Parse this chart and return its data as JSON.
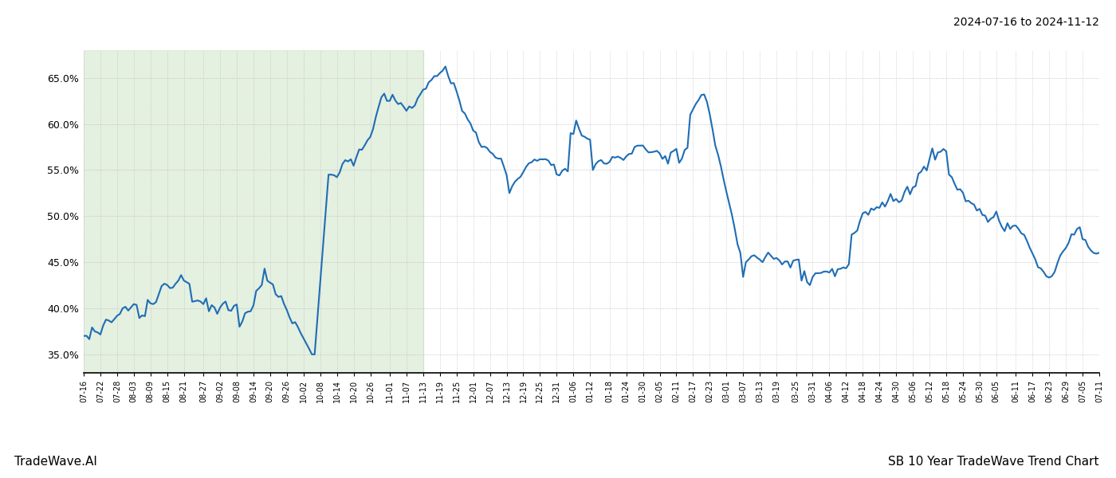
{
  "title_date_range": "2024-07-16 to 2024-11-12",
  "bottom_left_label": "TradeWave.AI",
  "bottom_right_label": "SB 10 Year TradeWave Trend Chart",
  "line_color": "#1f6db5",
  "line_width": 1.5,
  "bg_color": "#ffffff",
  "grid_color": "#b8b8b8",
  "highlight_fill": "#d6e8d0",
  "highlight_alpha": 0.65,
  "ylim": [
    33.0,
    68.0
  ],
  "yticks": [
    35.0,
    40.0,
    45.0,
    50.0,
    55.0,
    60.0,
    65.0
  ],
  "x_labels": [
    "07-16",
    "07-22",
    "07-28",
    "08-03",
    "08-09",
    "08-15",
    "08-21",
    "08-27",
    "09-02",
    "09-08",
    "09-14",
    "09-20",
    "09-26",
    "10-02",
    "10-08",
    "10-14",
    "10-20",
    "10-26",
    "11-01",
    "11-07",
    "11-13",
    "11-19",
    "11-25",
    "12-01",
    "12-07",
    "12-13",
    "12-19",
    "12-25",
    "12-31",
    "01-06",
    "01-12",
    "01-18",
    "01-24",
    "01-30",
    "02-05",
    "02-11",
    "02-17",
    "02-23",
    "03-01",
    "03-07",
    "03-13",
    "03-19",
    "03-25",
    "03-31",
    "04-06",
    "04-12",
    "04-18",
    "04-24",
    "04-30",
    "05-06",
    "05-12",
    "05-18",
    "05-24",
    "05-30",
    "06-05",
    "06-11",
    "06-17",
    "06-23",
    "06-29",
    "07-05",
    "07-11"
  ]
}
